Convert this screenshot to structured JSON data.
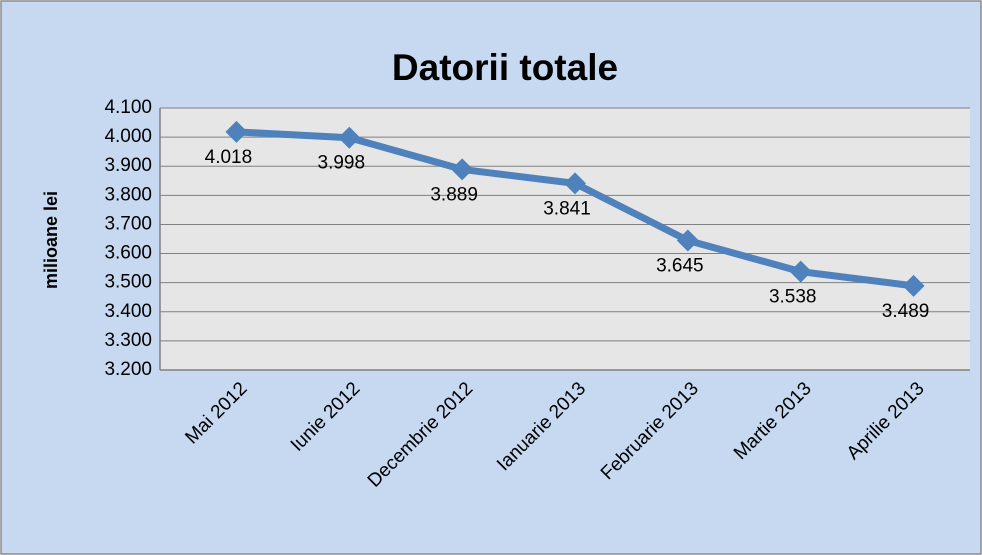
{
  "chart_data": {
    "type": "line",
    "title": "Datorii totale",
    "y_label": "milioane lei",
    "categories": [
      "Mai 2012",
      "Iunie 2012",
      "Decembrie 2012",
      "Ianuarie 2013",
      "Februarie 2013",
      "Martie 2013",
      "Aprilie 2013"
    ],
    "series": [
      {
        "color": "#4f81bd",
        "values": [
          4018,
          3998,
          3889,
          3841,
          3645,
          3538,
          3489
        ],
        "value_labels": [
          "4.018",
          "3.998",
          "3.889",
          "3.841",
          "3.645",
          "3.538",
          "3.489"
        ]
      }
    ],
    "ylim": [
      3200,
      4100
    ],
    "yticks": [
      {
        "value": 3200,
        "label": "3.200"
      },
      {
        "value": 3300,
        "label": "3.300"
      },
      {
        "value": 3400,
        "label": "3.400"
      },
      {
        "value": 3500,
        "label": "3.500"
      },
      {
        "value": 3600,
        "label": "3.600"
      },
      {
        "value": 3700,
        "label": "3.700"
      },
      {
        "value": 3800,
        "label": "3.800"
      },
      {
        "value": 3900,
        "label": "3.900"
      },
      {
        "value": 4000,
        "label": "4.000"
      },
      {
        "value": 4100,
        "label": "4.100"
      }
    ],
    "grid": true
  }
}
